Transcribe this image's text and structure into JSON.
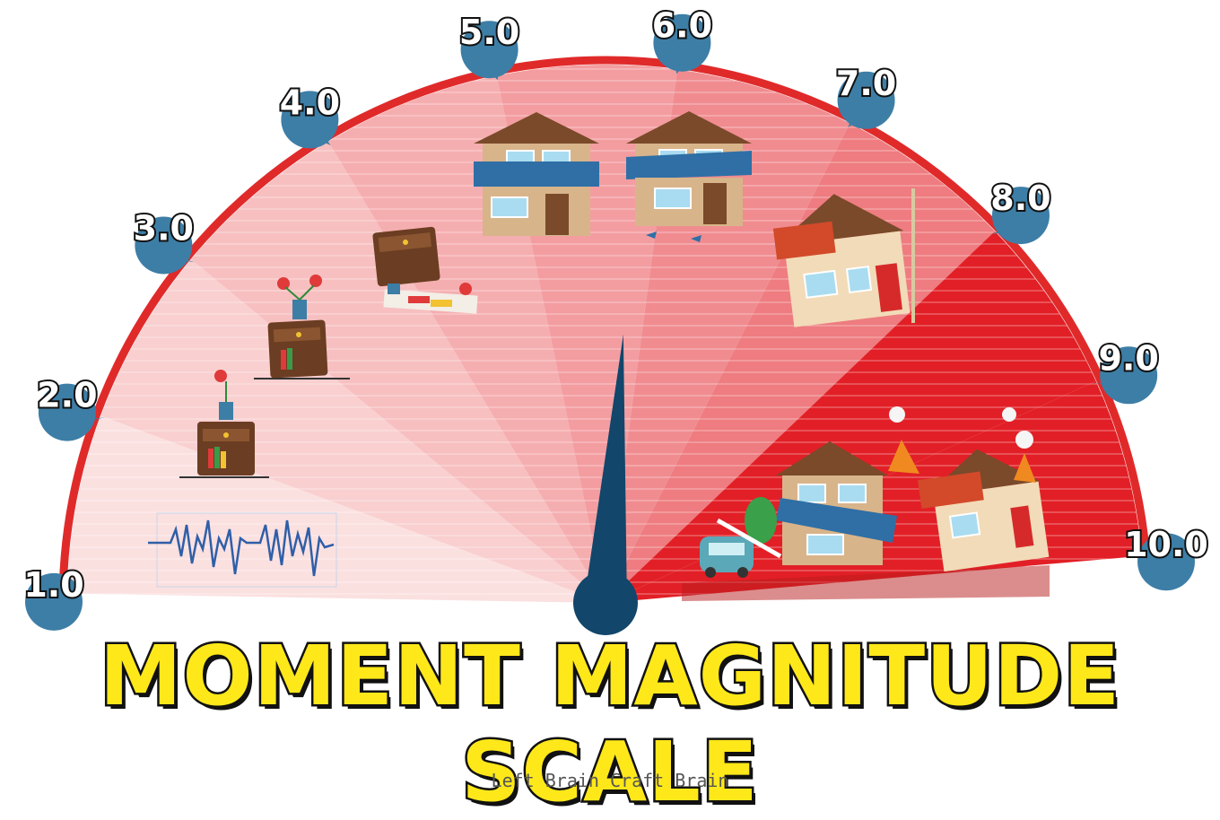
{
  "title": "MOMENT MAGNITUDE SCALE",
  "credit": "Left Brain Craft Brain",
  "scale": {
    "min": 1.0,
    "max": 10.0,
    "needle_value": 5.8,
    "labels": [
      "1.0",
      "2.0",
      "3.0",
      "4.0",
      "5.0",
      "6.0",
      "7.0",
      "8.0",
      "9.0",
      "10.0"
    ]
  },
  "colors": {
    "arc": "#e02a2a",
    "bubble": "#3d7ea6",
    "needle": "#12466b",
    "title_fill": "#ffe81a",
    "segment_light": "#fbe0e0",
    "segment_dark": "#e21f26"
  },
  "illustrations": [
    {
      "level": "1.0",
      "icon": "seismograph-icon"
    },
    {
      "level": "2.0",
      "icon": "nightstand-icon"
    },
    {
      "level": "3.0",
      "icon": "shaking-nightstand-icon"
    },
    {
      "level": "4.0",
      "icon": "fallen-nightstand-icon"
    },
    {
      "level": "5.0",
      "icon": "house-icon"
    },
    {
      "level": "6.0",
      "icon": "damaged-house-icon"
    },
    {
      "level": "7.0",
      "icon": "leaning-house-icon"
    },
    {
      "level": "8.0",
      "icon": "collapsing-houses-icon"
    }
  ]
}
